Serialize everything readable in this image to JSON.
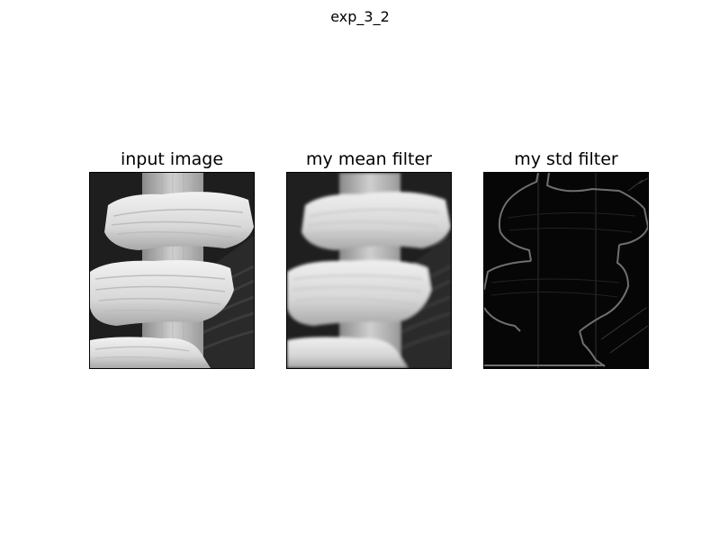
{
  "figure": {
    "suptitle": "exp_3_2",
    "panels": [
      {
        "title": "input image",
        "style": "grayscale"
      },
      {
        "title": "my mean filter",
        "style": "blurred grayscale"
      },
      {
        "title": "my std filter",
        "style": "edge magnitude on black"
      }
    ]
  }
}
